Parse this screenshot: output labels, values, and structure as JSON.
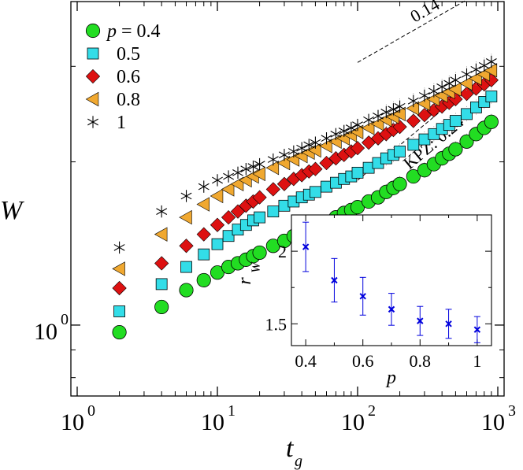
{
  "chart_data": [
    {
      "type": "scatter",
      "title": "",
      "xlabel": "t",
      "xlabel_sub": "g",
      "ylabel": "W",
      "xscale": "log",
      "yscale": "log",
      "xlim": [
        1,
        1000
      ],
      "ylim": [
        0.74,
        3.95
      ],
      "x_ticks": [
        {
          "value": 1,
          "base": "10",
          "exp": "0"
        },
        {
          "value": 10,
          "base": "10",
          "exp": "1"
        },
        {
          "value": 100,
          "base": "10",
          "exp": "2"
        },
        {
          "value": 1000,
          "base": "10",
          "exp": "3"
        }
      ],
      "y_ticks": [
        {
          "value": 1,
          "base": "10",
          "exp": "0"
        }
      ],
      "legend": {
        "placement": "top-left",
        "p_prefix": "p = "
      },
      "series": [
        {
          "name": "0.4",
          "marker": "circle",
          "color": "#22dd22",
          "x": [
            2,
            4,
            6,
            8,
            10,
            12,
            14,
            16,
            18,
            20,
            25,
            30,
            35,
            40,
            45,
            50,
            60,
            70,
            80,
            90,
            100,
            120,
            140,
            160,
            180,
            200,
            250,
            300,
            350,
            400,
            450,
            500,
            600,
            700,
            800,
            900
          ],
          "y": [
            0.97,
            1.08,
            1.16,
            1.21,
            1.25,
            1.28,
            1.3,
            1.32,
            1.34,
            1.36,
            1.4,
            1.43,
            1.46,
            1.48,
            1.5,
            1.52,
            1.55,
            1.58,
            1.61,
            1.63,
            1.65,
            1.69,
            1.72,
            1.76,
            1.79,
            1.82,
            1.88,
            1.93,
            1.98,
            2.03,
            2.07,
            2.11,
            2.18,
            2.25,
            2.31,
            2.37
          ]
        },
        {
          "name": "0.5",
          "marker": "square",
          "color": "#33dde8",
          "x": [
            2,
            4,
            6,
            8,
            10,
            12,
            14,
            16,
            18,
            20,
            25,
            30,
            35,
            40,
            45,
            50,
            60,
            70,
            80,
            90,
            100,
            120,
            140,
            160,
            180,
            200,
            250,
            300,
            350,
            400,
            450,
            500,
            600,
            700,
            800,
            900
          ],
          "y": [
            1.06,
            1.19,
            1.28,
            1.35,
            1.41,
            1.46,
            1.5,
            1.53,
            1.56,
            1.58,
            1.62,
            1.66,
            1.69,
            1.72,
            1.74,
            1.76,
            1.8,
            1.83,
            1.86,
            1.88,
            1.91,
            1.95,
            1.99,
            2.03,
            2.06,
            2.09,
            2.15,
            2.2,
            2.25,
            2.3,
            2.34,
            2.38,
            2.45,
            2.52,
            2.58,
            2.64
          ]
        },
        {
          "name": "0.6",
          "marker": "diamond",
          "color": "#dd1111",
          "x": [
            2,
            4,
            6,
            8,
            10,
            12,
            14,
            16,
            18,
            20,
            25,
            30,
            35,
            40,
            45,
            50,
            60,
            70,
            80,
            90,
            100,
            120,
            140,
            160,
            180,
            200,
            250,
            300,
            350,
            400,
            450,
            500,
            600,
            700,
            800,
            900
          ],
          "y": [
            1.17,
            1.3,
            1.4,
            1.47,
            1.53,
            1.58,
            1.62,
            1.66,
            1.69,
            1.72,
            1.78,
            1.82,
            1.86,
            1.89,
            1.92,
            1.94,
            1.99,
            2.03,
            2.06,
            2.09,
            2.12,
            2.17,
            2.21,
            2.25,
            2.29,
            2.32,
            2.38,
            2.44,
            2.49,
            2.53,
            2.57,
            2.61,
            2.67,
            2.73,
            2.78,
            2.83
          ]
        },
        {
          "name": "0.8",
          "marker": "triangle-left",
          "color": "#f0a830",
          "x": [
            2,
            4,
            6,
            8,
            10,
            12,
            14,
            16,
            18,
            20,
            25,
            30,
            35,
            40,
            45,
            50,
            60,
            70,
            80,
            90,
            100,
            120,
            140,
            160,
            180,
            200,
            250,
            300,
            350,
            400,
            450,
            500,
            600,
            700,
            800,
            900
          ],
          "y": [
            1.27,
            1.47,
            1.58,
            1.67,
            1.73,
            1.78,
            1.82,
            1.85,
            1.88,
            1.9,
            1.95,
            1.99,
            2.02,
            2.05,
            2.08,
            2.1,
            2.14,
            2.18,
            2.21,
            2.24,
            2.27,
            2.31,
            2.35,
            2.39,
            2.42,
            2.45,
            2.51,
            2.56,
            2.61,
            2.65,
            2.69,
            2.72,
            2.79,
            2.85,
            2.9,
            2.95
          ]
        },
        {
          "name": "1",
          "marker": "asterisk",
          "color": "#000000",
          "x": [
            2,
            4,
            6,
            8,
            10,
            12,
            14,
            16,
            18,
            20,
            25,
            30,
            35,
            40,
            45,
            50,
            60,
            70,
            80,
            90,
            100,
            120,
            140,
            160,
            180,
            200,
            250,
            300,
            350,
            400,
            450,
            500,
            600,
            700,
            800,
            900
          ],
          "y": [
            1.39,
            1.62,
            1.73,
            1.8,
            1.85,
            1.88,
            1.91,
            1.94,
            1.96,
            1.98,
            2.02,
            2.06,
            2.09,
            2.12,
            2.15,
            2.17,
            2.21,
            2.25,
            2.28,
            2.31,
            2.34,
            2.39,
            2.43,
            2.47,
            2.5,
            2.53,
            2.59,
            2.65,
            2.7,
            2.75,
            2.79,
            2.83,
            2.9,
            2.96,
            3.01,
            3.06
          ]
        }
      ],
      "reference_lines": [
        {
          "label": "0.14",
          "x": [
            100,
            950
          ],
          "y": [
            3.05,
            4.26
          ]
        },
        {
          "label": "KPZ: 0.24",
          "x": [
            100,
            950
          ],
          "y": [
            1.85,
            3.0
          ]
        }
      ]
    },
    {
      "type": "scatter",
      "title": "",
      "xlabel": "p",
      "ylabel": "r",
      "ylabel_sub": "W",
      "xlim": [
        0.35,
        1.05
      ],
      "ylim": [
        1.35,
        2.25
      ],
      "x_ticks": [
        "0.4",
        "0.6",
        "0.8",
        "1"
      ],
      "y_ticks": [
        "1.5",
        "2"
      ],
      "marker": "x",
      "color": "#0000dd",
      "x": [
        0.4,
        0.5,
        0.6,
        0.7,
        0.8,
        0.9,
        1.0
      ],
      "y": [
        2.03,
        1.8,
        1.69,
        1.6,
        1.52,
        1.5,
        1.46
      ],
      "error": [
        0.17,
        0.15,
        0.13,
        0.11,
        0.1,
        0.1,
        0.09
      ]
    }
  ]
}
